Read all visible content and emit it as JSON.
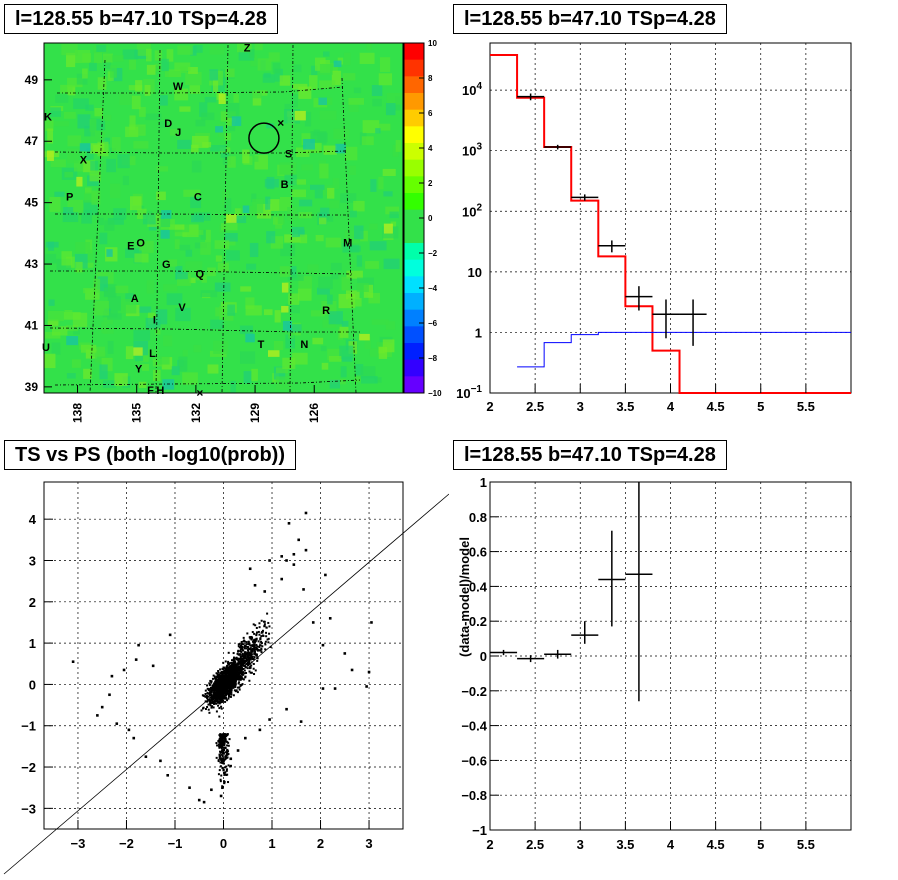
{
  "panels": {
    "map_title": "l=128.55 b=47.10 TSp=4.28",
    "spectrum_title": "l=128.55 b=47.10 TSp=4.28",
    "scatter_title": "TS vs PS (both -log10(prob))",
    "residual_title": "l=128.55 b=47.10 TSp=4.28"
  },
  "colors": {
    "map_background": "#33e14a",
    "data": "#000000",
    "model": "#ff0000",
    "background_model": "#0000ff"
  },
  "chart_data": [
    {
      "type": "heatmap",
      "title": "l=128.55 b=47.10 TSp=4.28",
      "x_ticks": [
        "138",
        "135",
        "132",
        "129",
        "126"
      ],
      "y_ticks": [
        "49",
        "47",
        "45",
        "43",
        "41",
        "39"
      ],
      "xlim": [
        139.7,
        121.5
      ],
      "ylim": [
        38.8,
        50.2
      ],
      "colorbar_ticks": [
        "10",
        "8",
        "6",
        "4",
        "2",
        "0",
        "−2",
        "−4",
        "−6",
        "−8",
        "−10"
      ],
      "colorbar_range": [
        -10,
        10
      ],
      "source_labels": [
        {
          "label": "Z",
          "l": 129.4,
          "b": 50.05
        },
        {
          "label": "W",
          "l": 132.9,
          "b": 48.8
        },
        {
          "label": "K",
          "l": 139.5,
          "b": 47.8
        },
        {
          "label": "D",
          "l": 133.4,
          "b": 47.6
        },
        {
          "label": "J",
          "l": 132.9,
          "b": 47.3
        },
        {
          "label": "X",
          "l": 137.7,
          "b": 46.4
        },
        {
          "label": "S",
          "l": 127.3,
          "b": 46.6
        },
        {
          "label": "B",
          "l": 127.5,
          "b": 45.6
        },
        {
          "label": "P",
          "l": 138.4,
          "b": 45.2
        },
        {
          "label": "C",
          "l": 131.9,
          "b": 45.2
        },
        {
          "label": "M",
          "l": 124.3,
          "b": 43.7
        },
        {
          "label": "E",
          "l": 135.3,
          "b": 43.6
        },
        {
          "label": "O",
          "l": 134.8,
          "b": 43.7
        },
        {
          "label": "G",
          "l": 133.5,
          "b": 43.0
        },
        {
          "label": "Q",
          "l": 131.8,
          "b": 42.7
        },
        {
          "label": "A",
          "l": 135.1,
          "b": 41.9
        },
        {
          "label": "V",
          "l": 132.7,
          "b": 41.6
        },
        {
          "label": "R",
          "l": 125.4,
          "b": 41.5
        },
        {
          "label": "I",
          "l": 134.1,
          "b": 41.2
        },
        {
          "label": "T",
          "l": 128.7,
          "b": 40.4
        },
        {
          "label": "N",
          "l": 126.5,
          "b": 40.4
        },
        {
          "label": "U",
          "l": 139.6,
          "b": 40.3
        },
        {
          "label": "L",
          "l": 134.2,
          "b": 40.1
        },
        {
          "label": "Y",
          "l": 134.9,
          "b": 39.6
        },
        {
          "label": "F",
          "l": 134.3,
          "b": 38.9
        },
        {
          "label": "H",
          "l": 133.8,
          "b": 38.9
        }
      ],
      "marked_source": {
        "l": 128.55,
        "b": 47.1,
        "shape": "circle"
      },
      "cross_markers": [
        {
          "l": 127.7,
          "b": 47.6
        },
        {
          "l": 131.8,
          "b": 38.8
        }
      ]
    },
    {
      "type": "line",
      "title": "l=128.55 b=47.10 TSp=4.28",
      "xlim": [
        2,
        6
      ],
      "ylim": [
        0.1,
        60000
      ],
      "yscale": "log",
      "grid": true,
      "x_ticks": [
        "2",
        "2.5",
        "3",
        "3.5",
        "4",
        "4.5",
        "5",
        "5.5"
      ],
      "y_ticks": [
        "10^4",
        "10^3",
        "10^2",
        "10",
        "1",
        "10^-1"
      ],
      "series": [
        {
          "kind": "step",
          "color": "#ff0000",
          "bins": [
            2.0,
            2.3,
            2.6,
            2.9,
            3.2,
            3.5,
            3.8,
            4.1,
            4.4,
            6.0
          ],
          "values": [
            38000,
            7500,
            1150,
            150,
            18,
            2.7,
            0.5,
            0.09,
            0.09
          ]
        },
        {
          "kind": "step",
          "color": "#0000ff",
          "bins": [
            2.3,
            2.6,
            2.9,
            3.2,
            3.5,
            6.0
          ],
          "values": [
            0.27,
            0.68,
            0.92,
            1.0,
            1.0
          ]
        },
        {
          "kind": "errorbar",
          "color": "#000000",
          "x": [
            2.45,
            2.75,
            3.05,
            3.35,
            3.65,
            3.95,
            4.25
          ],
          "xerr": 0.15,
          "y": [
            7800,
            1150,
            170,
            27,
            3.9,
            2.0,
            2.0
          ],
          "ylo": [
            6800,
            1050,
            150,
            21,
            2.3,
            0.8,
            0.6
          ],
          "yhi": [
            8800,
            1250,
            190,
            33,
            5.8,
            3.5,
            3.5
          ]
        }
      ]
    },
    {
      "type": "scatter",
      "title": "TS vs PS (both -log10(prob))",
      "xlim": [
        -3.7,
        3.7
      ],
      "ylim": [
        -3.5,
        4.9
      ],
      "grid": true,
      "x_ticks": [
        "−3",
        "−2",
        "−1",
        "0",
        "1",
        "2",
        "3"
      ],
      "y_ticks": [
        "−3",
        "−2",
        "−1",
        "0",
        "1",
        "2",
        "3",
        "4"
      ],
      "diagonal": "y=x",
      "points": [
        [
          -3.1,
          0.55
        ],
        [
          3.0,
          0.3
        ],
        [
          2.95,
          -0.05
        ],
        [
          3.05,
          1.5
        ],
        [
          2.1,
          2.65
        ],
        [
          1.7,
          4.15
        ],
        [
          1.7,
          3.25
        ],
        [
          1.65,
          2.3
        ],
        [
          1.45,
          3.15
        ],
        [
          1.45,
          2.9
        ],
        [
          1.55,
          3.5
        ],
        [
          2.05,
          0.95
        ],
        [
          1.35,
          3.9
        ],
        [
          1.3,
          3.0
        ],
        [
          1.2,
          3.1
        ],
        [
          2.3,
          -0.1
        ],
        [
          2.05,
          -0.1
        ],
        [
          -2.2,
          -0.95
        ],
        [
          -2.35,
          -0.25
        ],
        [
          -1.95,
          -1.1
        ],
        [
          -1.85,
          -1.3
        ],
        [
          -1.6,
          -1.75
        ],
        [
          -1.3,
          -1.85
        ],
        [
          -1.15,
          -2.2
        ],
        [
          -0.7,
          -2.5
        ],
        [
          -0.5,
          -2.8
        ],
        [
          -0.4,
          -2.85
        ],
        [
          -0.25,
          -2.55
        ],
        [
          -0.05,
          -2.7
        ],
        [
          -2.05,
          0.35
        ],
        [
          -1.8,
          0.6
        ],
        [
          -1.45,
          0.45
        ],
        [
          -1.1,
          1.2
        ],
        [
          1.6,
          -0.9
        ],
        [
          1.3,
          -0.6
        ],
        [
          0.95,
          -0.85
        ],
        [
          0.75,
          -1.1
        ],
        [
          0.45,
          -1.3
        ],
        [
          0.3,
          -1.6
        ],
        [
          0.15,
          -1.8
        ],
        [
          1.85,
          1.5
        ],
        [
          0.85,
          2.25
        ],
        [
          0.55,
          2.8
        ],
        [
          0.95,
          3.0
        ],
        [
          1.2,
          2.55
        ],
        [
          0.65,
          2.4
        ],
        [
          2.2,
          1.6
        ],
        [
          2.5,
          0.75
        ],
        [
          2.65,
          0.35
        ],
        [
          -2.5,
          -0.55
        ],
        [
          -2.3,
          0.2
        ],
        [
          -2.6,
          -0.75
        ],
        [
          -1.75,
          0.95
        ]
      ]
    },
    {
      "type": "line",
      "title": "l=128.55 b=47.10 TSp=4.28",
      "ylabel": "(data-model)/model",
      "xlim": [
        2,
        6
      ],
      "ylim": [
        -1,
        1
      ],
      "grid": true,
      "x_ticks": [
        "2",
        "2.5",
        "3",
        "3.5",
        "4",
        "4.5",
        "5",
        "5.5"
      ],
      "y_ticks": [
        "1",
        "0.8",
        "0.6",
        "0.4",
        "0.2",
        "0",
        "−0.2",
        "−0.4",
        "−0.6",
        "−0.8",
        "−1"
      ],
      "series": [
        {
          "kind": "errorbar",
          "color": "#000000",
          "x": [
            2.15,
            2.45,
            2.75,
            3.05,
            3.35,
            3.65
          ],
          "xerr": 0.15,
          "y": [
            0.02,
            -0.015,
            0.01,
            0.12,
            0.44,
            0.47
          ],
          "ylo": [
            0.005,
            -0.035,
            -0.015,
            0.07,
            0.17,
            -0.26
          ],
          "yhi": [
            0.035,
            0.005,
            0.035,
            0.2,
            0.72,
            1.0
          ]
        }
      ]
    }
  ]
}
